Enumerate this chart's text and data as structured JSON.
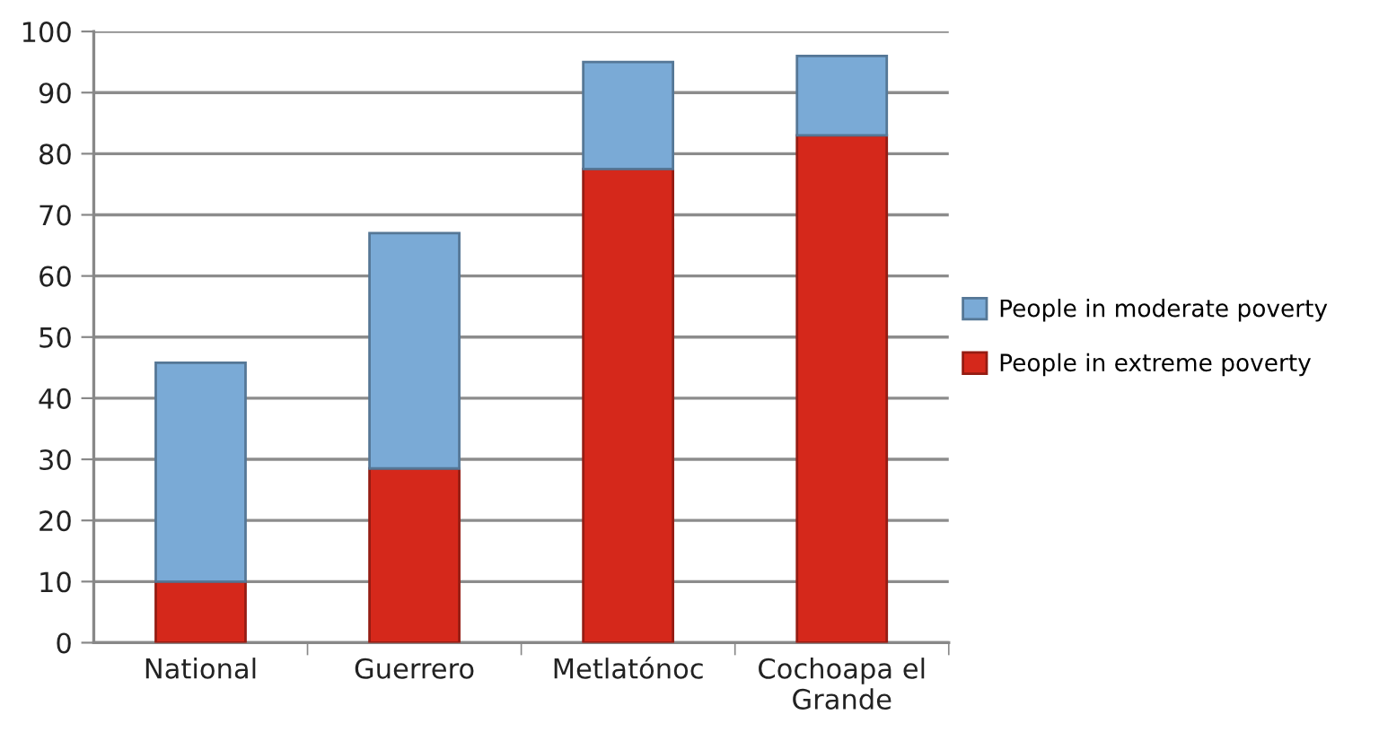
{
  "chart_data": {
    "type": "bar",
    "stacked": true,
    "categories": [
      "National",
      "Guerrero",
      "Metlatónoc",
      "Cochoapa el Grande"
    ],
    "series": [
      {
        "name": "People in extreme poverty",
        "color": "#d5281b",
        "values": [
          10,
          28.5,
          77.5,
          83
        ]
      },
      {
        "name": "People in moderate poverty",
        "color": "#7aaad6",
        "values": [
          35.8,
          38.5,
          17.5,
          13
        ]
      }
    ],
    "ylim": [
      0,
      100
    ],
    "yticks": [
      0,
      10,
      20,
      30,
      40,
      50,
      60,
      70,
      80,
      90,
      100
    ],
    "grid": "y",
    "legend": "right"
  }
}
